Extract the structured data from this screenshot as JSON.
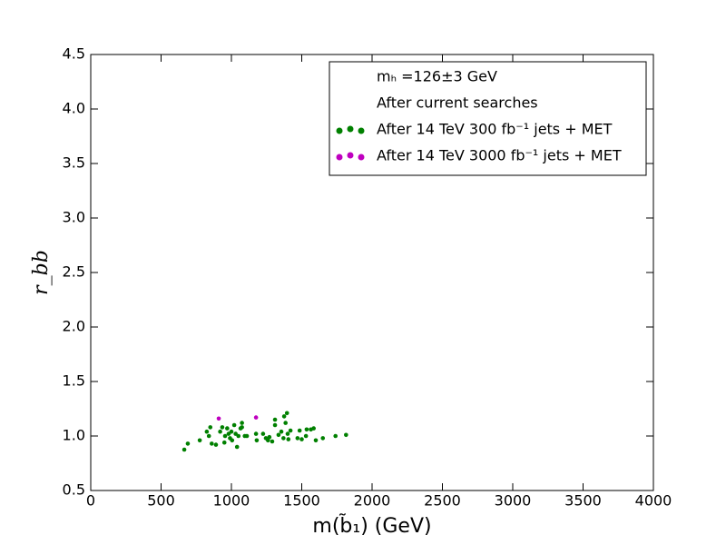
{
  "chart_data": {
    "type": "scatter",
    "x_label": "m(b̃₁) (GeV)",
    "y_label": "r_bb",
    "xlim": [
      0,
      4000
    ],
    "ylim": [
      0.5,
      4.5
    ],
    "xticks": [
      0,
      500,
      1000,
      1500,
      2000,
      2500,
      3000,
      3500,
      4000
    ],
    "yticks": [
      0.5,
      {
        "value": 1,
        "label": "1.0"
      },
      1.5,
      {
        "value": 2,
        "label": "2.0"
      },
      2.5,
      {
        "value": 3,
        "label": "3.0"
      },
      3.5,
      {
        "value": 4,
        "label": "4.0"
      },
      4.5
    ],
    "legend": "upper right",
    "series": [
      {
        "name": "mₕ =126±3 GeV",
        "color": "#ffffff",
        "x": [],
        "values": []
      },
      {
        "name": "After current searches",
        "color": "#ffffff",
        "x": [],
        "values": []
      },
      {
        "name": "After 14 TeV 300 fb⁻¹ jets + MET",
        "color": "#008000",
        "x": [
          665,
          690,
          775,
          825,
          840,
          850,
          860,
          890,
          920,
          935,
          950,
          955,
          970,
          980,
          990,
          1000,
          1005,
          1020,
          1030,
          1040,
          1050,
          1065,
          1075,
          1075,
          1095,
          1110,
          1175,
          1180,
          1225,
          1245,
          1260,
          1270,
          1290,
          1310,
          1310,
          1335,
          1355,
          1370,
          1375,
          1385,
          1395,
          1400,
          1405,
          1420,
          1470,
          1485,
          1500,
          1530,
          1535,
          1565,
          1585,
          1600,
          1650,
          1740,
          1815
        ],
        "values": [
          0.875,
          0.93,
          0.96,
          1.04,
          1.0,
          1.08,
          0.93,
          0.92,
          1.04,
          1.08,
          0.94,
          1.0,
          1.07,
          1.02,
          0.98,
          1.04,
          0.96,
          1.1,
          1.02,
          0.9,
          1.0,
          1.07,
          1.12,
          1.08,
          1.0,
          1.0,
          1.02,
          0.96,
          1.02,
          0.98,
          0.96,
          0.99,
          0.95,
          1.15,
          1.1,
          1.01,
          1.04,
          0.98,
          1.18,
          1.12,
          1.21,
          1.02,
          0.97,
          1.05,
          0.98,
          1.05,
          0.97,
          1.0,
          1.06,
          1.06,
          1.07,
          0.96,
          0.98,
          1.0,
          1.01
        ]
      },
      {
        "name": "After 14 TeV 3000 fb⁻¹ jets + MET",
        "color": "#bf00bf",
        "x": [
          910,
          1175
        ],
        "values": [
          1.16,
          1.17
        ]
      }
    ]
  }
}
